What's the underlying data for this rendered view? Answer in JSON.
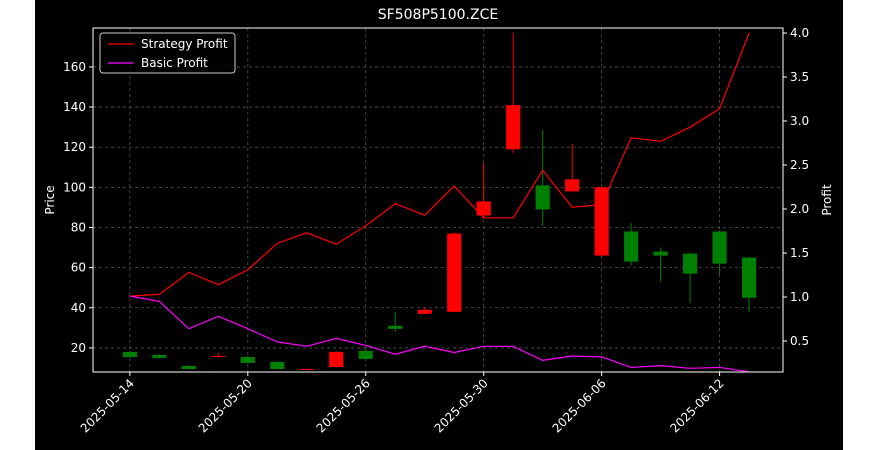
{
  "chart_data": {
    "type": "candlestick",
    "title": "SF508P5100.ZCE",
    "ylabel": "Price",
    "y2label": "Profit",
    "categories": [
      "2025-05-14",
      null,
      null,
      null,
      "2025-05-20",
      null,
      null,
      null,
      "2025-05-26",
      null,
      null,
      null,
      "2025-05-30",
      null,
      null,
      null,
      "2025-06-06",
      null,
      null,
      null,
      "2025-06-12",
      null
    ],
    "candles": {
      "up_color": "#ff0000",
      "down_color": "#008000",
      "open": [
        18,
        16.5,
        11,
        15.5,
        15.5,
        13,
        9,
        10.5,
        18.5,
        31,
        37,
        38,
        86,
        119,
        101,
        98,
        66,
        78,
        68,
        67,
        78,
        65
      ],
      "high": [
        18.5,
        17,
        11.5,
        17.5,
        16,
        13.5,
        9.8,
        18.5,
        19.5,
        38,
        40,
        77.5,
        112,
        177,
        128.6,
        121.6,
        100.5,
        82.3,
        70,
        67.5,
        78.5,
        65.5
      ],
      "low": [
        15,
        14.8,
        9.2,
        15.2,
        12.2,
        9.2,
        8.8,
        10.2,
        14.2,
        28,
        36.8,
        37.8,
        85,
        117,
        80.8,
        97.8,
        65.5,
        61,
        53,
        42.4,
        56.4,
        38
      ],
      "close": [
        15.5,
        15,
        9.5,
        16,
        12.5,
        9.5,
        9.5,
        18,
        14.5,
        29.5,
        39,
        77,
        93,
        141,
        89,
        104,
        100,
        63,
        66,
        57,
        62,
        45
      ]
    },
    "series": [
      {
        "name": "Strategy Profit",
        "color": "#ff0000",
        "axis": "y2",
        "values": [
          1.01,
          1.03,
          1.28,
          1.14,
          1.31,
          1.61,
          1.73,
          1.6,
          1.81,
          2.06,
          1.93,
          2.26,
          1.9,
          1.9,
          2.44,
          2.02,
          2.05,
          2.81,
          2.77,
          2.93,
          3.14,
          4.0
        ]
      },
      {
        "name": "Basic Profit",
        "color": "#ff00ff",
        "axis": "y2",
        "values": [
          1.01,
          0.95,
          0.64,
          0.78,
          0.64,
          0.49,
          0.44,
          0.53,
          0.45,
          0.35,
          0.44,
          0.37,
          0.44,
          0.44,
          0.28,
          0.33,
          0.32,
          0.2,
          0.22,
          0.19,
          0.2,
          0.15
        ]
      }
    ],
    "ylim": [
      8,
      179.4
    ],
    "yticks": [
      20,
      40,
      60,
      80,
      100,
      120,
      140,
      160
    ],
    "y2lim": [
      0.148,
      4.057
    ],
    "y2ticks": [
      0.5,
      {
        "value": 1.0,
        "label": "1.0"
      },
      1.5,
      {
        "value": 2.0,
        "label": "2.0"
      },
      2.5,
      {
        "value": 3.0,
        "label": "3.0"
      },
      3.5,
      {
        "value": 4.0,
        "label": "4.0"
      }
    ],
    "grid": true,
    "legend": "upper left"
  }
}
